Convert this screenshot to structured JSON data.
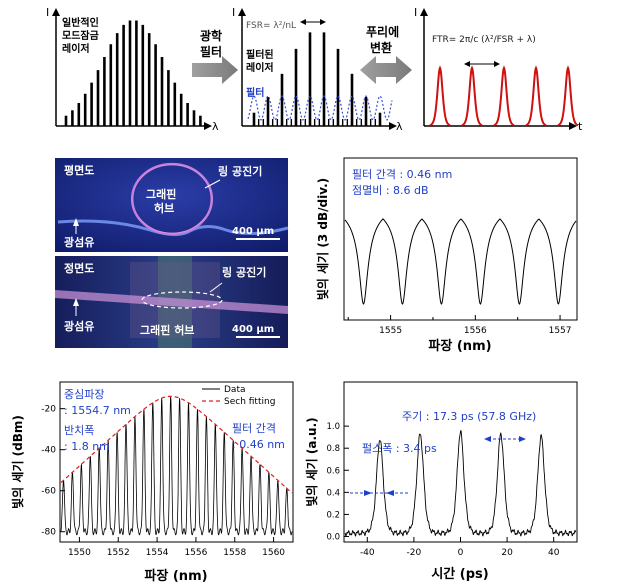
{
  "schematic": {
    "laser_label": [
      "일반적인",
      "모드잠금",
      "레이저"
    ],
    "filter_step": [
      "광학",
      "필터"
    ],
    "filtered_label": [
      "필터된",
      "레이저"
    ],
    "filter_legend": "필터",
    "fourier_step": [
      "푸리에",
      "변환"
    ],
    "fsr_formula": "FSR= λ²/nL",
    "ftr_formula": "FTR= 2π/c (λ²/FSR + λ)",
    "axis_I": "I",
    "axis_lambda": "λ",
    "axis_t": "t"
  },
  "photos": {
    "top": {
      "title": "평면도",
      "ring": "링 공진기",
      "hub": [
        "그래핀",
        "허브"
      ],
      "fiber": "광섬유",
      "scale": "400 μm"
    },
    "bottom": {
      "title": "정면도",
      "ring": "링 공진기",
      "hub": "그래핀 허브",
      "fiber": "광섬유",
      "scale": "400 μm"
    }
  },
  "chart_data": [
    {
      "type": "line",
      "xlabel": "파장 (nm)",
      "ylabel": "빛의 세기 (3 dB/div.)",
      "x_ticks": [
        1555,
        1556,
        1557
      ],
      "xlim": [
        1554.45,
        1557.2
      ],
      "annotations": [
        "필터 간격 : 0.46 nm",
        "점멸비 : 8.6 dB"
      ],
      "series": [
        {
          "period_nm": 0.46,
          "extinction_db": 8.6,
          "dips_nm": [
            1554.68,
            1555.14,
            1555.6,
            1556.06,
            1556.52,
            1556.98
          ]
        }
      ]
    },
    {
      "type": "line",
      "xlabel": "파장 (nm)",
      "ylabel": "빛의 세기 (dBm)",
      "x_ticks": [
        1550,
        1552,
        1554,
        1556,
        1558,
        1560
      ],
      "y_ticks": [
        -20,
        -40,
        -60,
        -80
      ],
      "xlim": [
        1549,
        1561
      ],
      "ylim": [
        -85,
        -7
      ],
      "legend": [
        "Data",
        "Sech fitting"
      ],
      "annotations": [
        "중심파장",
        ": 1554.7 nm",
        "반치폭",
        ": 1.8 nm",
        "필터 간격",
        ": 0.46 nm"
      ],
      "series": [
        {
          "name": "Data",
          "center_nm": 1554.7,
          "fwhm_nm": 1.8,
          "mode_spacing_nm": 0.46,
          "peak_dbm": -14
        },
        {
          "name": "Sech fitting",
          "center_nm": 1554.7,
          "fwhm_nm": 1.8,
          "peak_dbm": -14
        }
      ]
    },
    {
      "type": "line",
      "xlabel": "시간 (ps)",
      "ylabel": "빛의 세기 (a.u.)",
      "x_ticks": [
        -40,
        -20,
        0,
        20,
        40
      ],
      "y_ticks": [
        0.0,
        0.2,
        0.4,
        0.6,
        0.8,
        1.0
      ],
      "xlim": [
        -50,
        50
      ],
      "ylim": [
        -0.05,
        1.4
      ],
      "annotations": [
        "주기 : 17.3 ps (57.8 GHz)",
        "펄스폭 : 3.4 ps"
      ],
      "series": [
        {
          "period_ps": 17.3,
          "pulse_width_ps": 3.4,
          "peaks_ps": [
            -34.6,
            -17.3,
            0,
            17.3,
            34.6
          ],
          "peak_values": [
            0.85,
            0.9,
            0.92,
            0.9,
            0.88
          ]
        }
      ]
    }
  ],
  "colors": {
    "annotation": "#1f3fc8",
    "pulses": "#d01010",
    "fit": "#e02020"
  }
}
